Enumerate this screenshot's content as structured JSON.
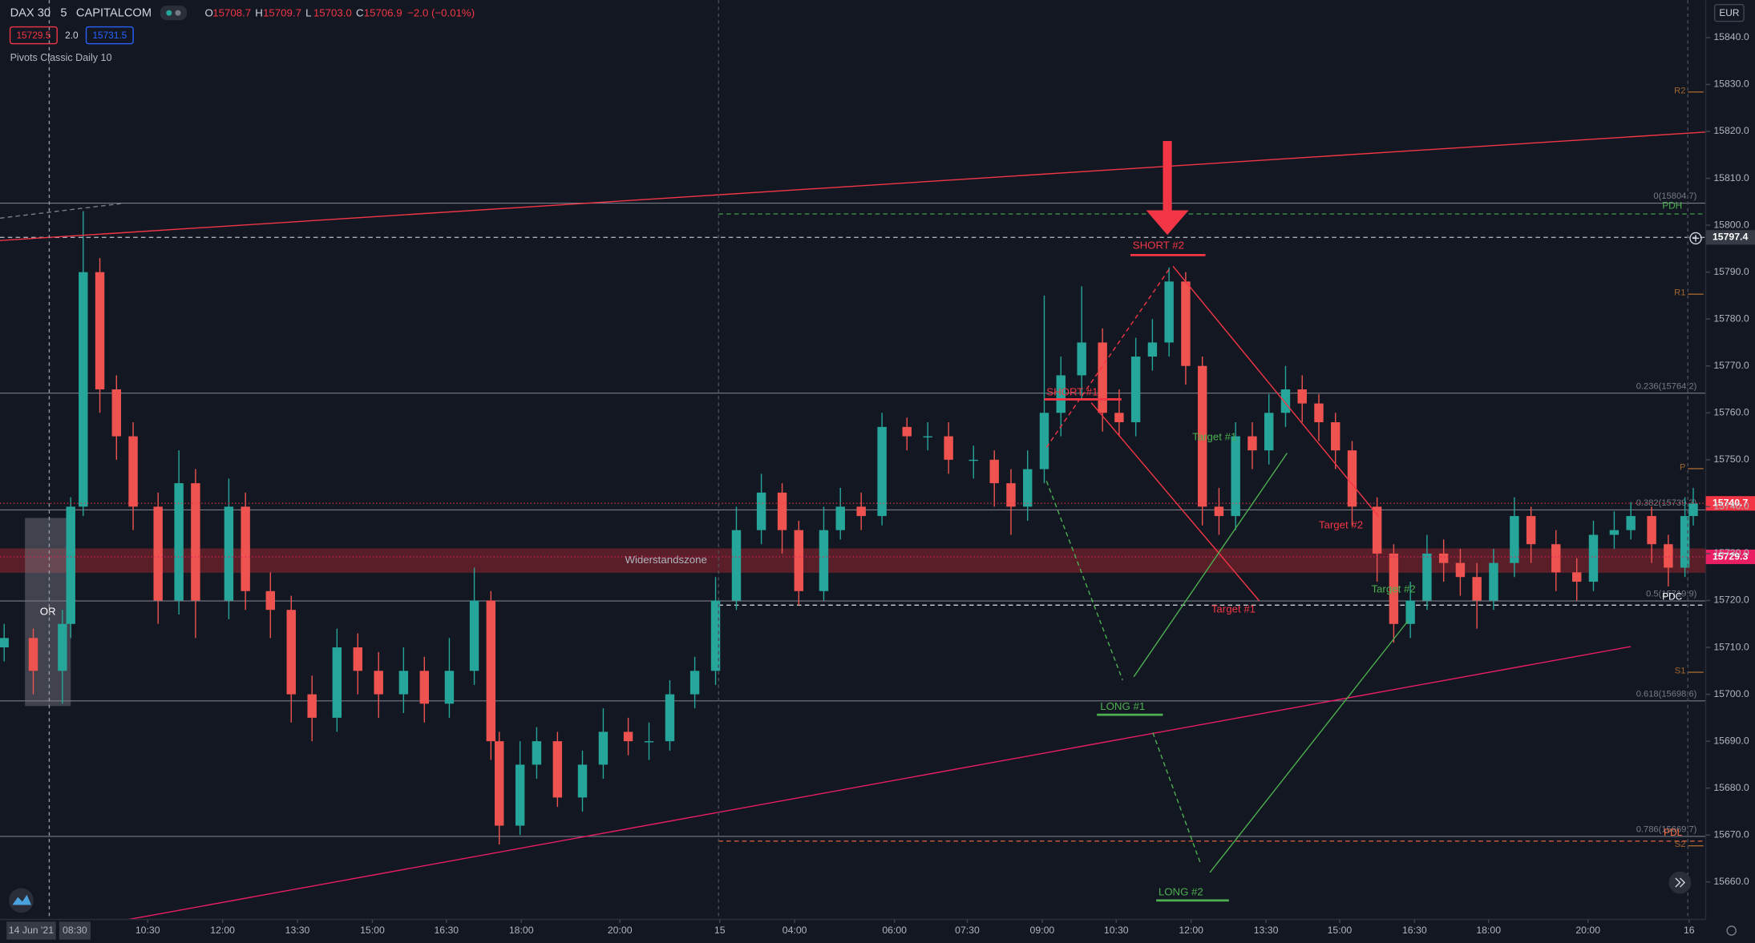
{
  "chart_data": {
    "type": "candlestick",
    "legend": {
      "symbol": "DAX 30",
      "interval": "5",
      "source": "CAPITALCOM",
      "ohlc": [
        {
          "key": "O",
          "text": "15708.7"
        },
        {
          "key": "H",
          "text": "15709.7"
        },
        {
          "key": "L",
          "text": "15703.0"
        },
        {
          "key": "C",
          "text": "15706.9"
        }
      ],
      "change": "−2.0 (−0.01%)",
      "bid": "15729.5",
      "spread": "2.0",
      "ask": "15731.5",
      "indicator": "Pivots Classic Daily 10"
    },
    "currency": "EUR",
    "xlim": [
      0,
      410
    ],
    "ylim": [
      15652,
      15848
    ],
    "yticks": [
      {
        "value": 15660,
        "label": "15660.0"
      },
      {
        "value": 15670,
        "label": "15670.0"
      },
      {
        "value": 15680,
        "label": "15680.0"
      },
      {
        "value": 15690,
        "label": "15690.0"
      },
      {
        "value": 15700,
        "label": "15700.0"
      },
      {
        "value": 15710,
        "label": "15710.0"
      },
      {
        "value": 15720,
        "label": "15720.0"
      },
      {
        "value": 15730,
        "label": "15730.0"
      },
      {
        "value": 15740,
        "label": "15740.0"
      },
      {
        "value": 15750,
        "label": "15750.0"
      },
      {
        "value": 15760,
        "label": "15760.0"
      },
      {
        "value": 15770,
        "label": "15770.0"
      },
      {
        "value": 15780,
        "label": "15780.0"
      },
      {
        "value": 15790,
        "label": "15790.0"
      },
      {
        "value": 15800,
        "label": "15800.0"
      },
      {
        "value": 15810,
        "label": "15810.0"
      },
      {
        "value": 15820,
        "label": "15820.0"
      },
      {
        "value": 15830,
        "label": "15830.0"
      },
      {
        "value": 15840,
        "label": "15840.0"
      }
    ],
    "xticks": [
      {
        "value": 7.5,
        "label": "14 Jun '21"
      },
      {
        "value": 18,
        "label": "08:30"
      },
      {
        "value": 35.5,
        "label": "10:30"
      },
      {
        "value": 53.5,
        "label": "12:00"
      },
      {
        "value": 71.5,
        "label": "13:30"
      },
      {
        "value": 89.5,
        "label": "15:00"
      },
      {
        "value": 107.3,
        "label": "16:30"
      },
      {
        "value": 125.3,
        "label": "18:00"
      },
      {
        "value": 149,
        "label": "20:00"
      },
      {
        "value": 173,
        "label": "15"
      },
      {
        "value": 191,
        "label": "04:00"
      },
      {
        "value": 215,
        "label": "06:00"
      },
      {
        "value": 232.5,
        "label": "07:30"
      },
      {
        "value": 250.5,
        "label": "09:00"
      },
      {
        "value": 268.3,
        "label": "10:30"
      },
      {
        "value": 286.3,
        "label": "12:00"
      },
      {
        "value": 304.3,
        "label": "13:30"
      },
      {
        "value": 322,
        "label": "15:00"
      },
      {
        "value": 340,
        "label": "16:30"
      },
      {
        "value": 357.8,
        "label": "18:00"
      },
      {
        "value": 381.7,
        "label": "20:00"
      },
      {
        "value": 406,
        "label": "16"
      }
    ],
    "x": [
      1,
      8,
      15,
      17,
      20,
      24,
      28,
      32,
      38,
      43,
      47,
      55,
      59,
      65,
      70,
      75,
      81,
      86,
      91,
      97,
      102,
      108,
      114,
      118,
      120,
      125,
      129,
      134,
      140,
      145,
      151,
      156,
      161,
      167,
      172,
      177,
      183,
      188,
      192,
      198,
      202,
      207,
      212,
      218,
      223,
      228,
      234,
      239,
      243,
      247,
      251,
      255,
      260,
      265,
      269,
      273,
      277,
      281,
      285,
      289,
      293,
      297,
      301,
      305,
      309,
      313,
      317,
      321,
      325,
      331,
      335,
      339,
      343,
      347,
      351,
      355,
      359,
      364,
      368,
      374,
      379,
      383,
      388,
      392,
      397,
      401,
      405,
      407
    ],
    "open": [
      15710,
      15712,
      15705,
      15715,
      15740,
      15790,
      15765,
      15755,
      15740,
      15720,
      15745,
      15720,
      15740,
      15722,
      15718,
      15700,
      15695,
      15710,
      15705,
      15700,
      15705,
      15698,
      15705,
      15720,
      15690,
      15672,
      15685,
      15690,
      15678,
      15685,
      15692,
      15690,
      15690,
      15700,
      15705,
      15720,
      15735,
      15743,
      15735,
      15722,
      15735,
      15740,
      15738,
      15757,
      15755,
      15755,
      15750,
      15750,
      15745,
      15740,
      15748,
      15760,
      15768,
      15775,
      15760,
      15758,
      15772,
      15775,
      15788,
      15770,
      15740,
      15738,
      15755,
      15752,
      15760,
      15765,
      15762,
      15758,
      15752,
      15740,
      15730,
      15715,
      15720,
      15730,
      15728,
      15725,
      15720,
      15728,
      15738,
      15732,
      15726,
      15724,
      15734,
      15735,
      15738,
      15732,
      15727,
      15738
    ],
    "high": [
      15715,
      15714,
      15718,
      15742,
      15803,
      15793,
      15768,
      15758,
      15743,
      15752,
      15748,
      15746,
      15743,
      15726,
      15721,
      15704,
      15714,
      15713,
      15709,
      15710,
      15708,
      15712,
      15727,
      15722,
      15692,
      15690,
      15693,
      15692,
      15688,
      15697,
      15695,
      15694,
      15703,
      15708,
      15725,
      15740,
      15747,
      15745,
      15737,
      15740,
      15744,
      15743,
      15760,
      15759,
      15758,
      15758,
      15753,
      15752,
      15748,
      15752,
      15785,
      15772,
      15787,
      15778,
      15765,
      15776,
      15780,
      15791,
      15790,
      15772,
      15744,
      15758,
      15758,
      15764,
      15770,
      15768,
      15764,
      15760,
      15754,
      15742,
      15732,
      15724,
      15734,
      15733,
      15731,
      15728,
      15731,
      15742,
      15740,
      15735,
      15729,
      15737,
      15739,
      15741,
      15740,
      15734,
      15742,
      15744
    ],
    "low": [
      15707,
      15700,
      15698,
      15712,
      15738,
      15760,
      15750,
      15735,
      15715,
      15717,
      15712,
      15716,
      15718,
      15712,
      15694,
      15690,
      15692,
      15700,
      15695,
      15696,
      15694,
      15695,
      15702,
      15686,
      15668,
      15670,
      15682,
      15676,
      15675,
      15682,
      15687,
      15686,
      15688,
      15697,
      15702,
      15718,
      15732,
      15730,
      15719,
      15720,
      15733,
      15735,
      15736,
      15752,
      15752,
      15747,
      15746,
      15740,
      15734,
      15737,
      15745,
      15755,
      15763,
      15756,
      15755,
      15755,
      15769,
      15772,
      15766,
      15736,
      15734,
      15735,
      15748,
      15749,
      15757,
      15758,
      15754,
      15748,
      15736,
      15724,
      15711,
      15712,
      15718,
      15724,
      15721,
      15714,
      15718,
      15725,
      15728,
      15722,
      15720,
      15722,
      15731,
      15733,
      15728,
      15723,
      15725,
      15736
    ],
    "close": [
      15712,
      15705,
      15715,
      15740,
      15790,
      15765,
      15755,
      15740,
      15720,
      15745,
      15720,
      15740,
      15722,
      15718,
      15700,
      15695,
      15710,
      15705,
      15700,
      15705,
      15698,
      15705,
      15720,
      15690,
      15672,
      15685,
      15690,
      15678,
      15685,
      15692,
      15690,
      15690,
      15700,
      15705,
      15720,
      15735,
      15743,
      15735,
      15722,
      15735,
      15740,
      15738,
      15757,
      15755,
      15755,
      15750,
      15750,
      15745,
      15740,
      15748,
      15760,
      15768,
      15775,
      15760,
      15758,
      15772,
      15775,
      15788,
      15770,
      15740,
      15738,
      15755,
      15752,
      15760,
      15765,
      15762,
      15758,
      15752,
      15740,
      15730,
      15715,
      15720,
      15730,
      15728,
      15725,
      15720,
      15728,
      15738,
      15732,
      15726,
      15724,
      15734,
      15735,
      15738,
      15732,
      15727,
      15738,
      15740.7
    ],
    "up_color": "#26a69a",
    "down_color": "#ef5350",
    "fib_levels": [
      {
        "label": "0(15804.7)",
        "value": 15804.7
      },
      {
        "label": "0.236(15764.2)",
        "value": 15764.2
      },
      {
        "label": "0.382(15739.3)",
        "value": 15739.3
      },
      {
        "label": "0.5(15719.9)",
        "value": 15719.9
      },
      {
        "label": "0.618(15698.6)",
        "value": 15698.6
      },
      {
        "label": "0.786(15669.7)",
        "value": 15669.7
      }
    ],
    "pivots": [
      {
        "label": "R2",
        "value": 15828.4
      },
      {
        "label": "R1",
        "value": 15785.3
      },
      {
        "label": "P",
        "value": 15748.1
      },
      {
        "label": "S1",
        "value": 15704.7
      },
      {
        "label": "S2",
        "value": 15667.7
      }
    ],
    "prev_day": [
      {
        "label": "PDH",
        "value": 15802.4,
        "color": "#4caf50"
      },
      {
        "label": "PDC",
        "value": 15719.0,
        "color": "#ffffff"
      },
      {
        "label": "PDL",
        "value": 15668.7,
        "color": "#ff7043"
      }
    ],
    "zone": {
      "label": "Widerstandszone",
      "range": [
        15725.9,
        15731.1
      ]
    },
    "opening_range": {
      "label": "OR",
      "x": [
        6,
        17
      ],
      "range": [
        15697.5,
        15737.6
      ]
    },
    "price_tags": [
      {
        "value": 15797.4,
        "color": "#363a45"
      },
      {
        "value": 15740.7,
        "color": "#f23645"
      },
      {
        "value": 15729.3,
        "color": "#e91e63"
      }
    ],
    "annotations": [
      {
        "text": "SHORT #2",
        "color": "#f23645"
      },
      {
        "text": "SHORT #1",
        "color": "#f23645"
      },
      {
        "text": "LONG #1",
        "color": "#4caf50"
      },
      {
        "text": "LONG #2",
        "color": "#4caf50"
      },
      {
        "text": "Target #1",
        "color": "#4caf50"
      },
      {
        "text": "Target #1",
        "color": "#f23645"
      },
      {
        "text": "Target #2",
        "color": "#f23645"
      },
      {
        "text": "Target #2",
        "color": "#4caf50"
      }
    ]
  }
}
